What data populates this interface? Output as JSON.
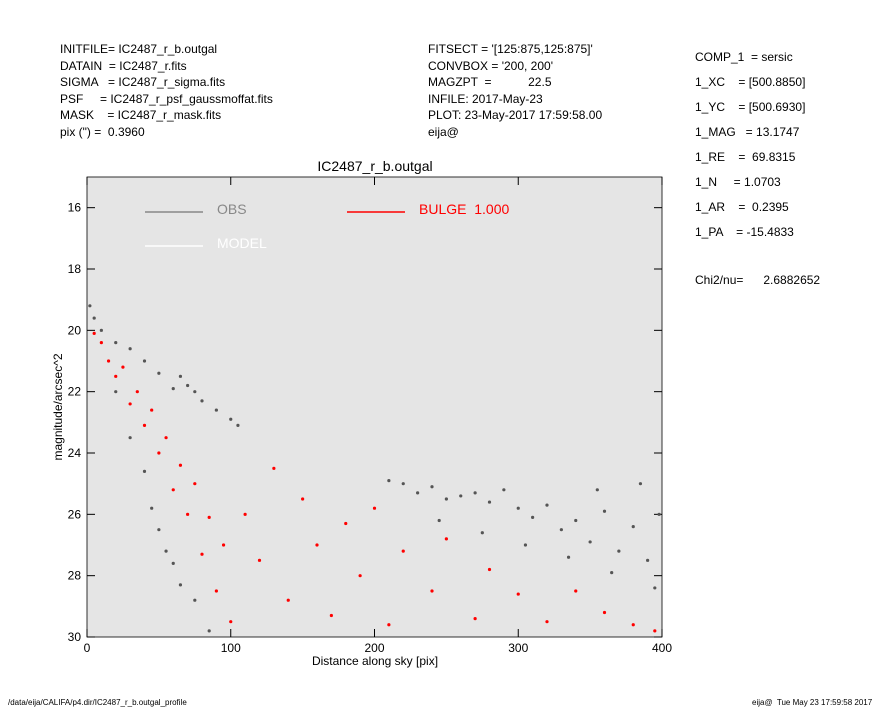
{
  "header": {
    "left": [
      "INITFILE= IC2487_r_b.outgal",
      "DATAIN  = IC2487_r.fits",
      "SIGMA   = IC2487_r_sigma.fits",
      "PSF     = IC2487_r_psf_gaussmoffat.fits",
      "MASK    = IC2487_r_mask.fits",
      "pix (\") =  0.3960"
    ],
    "middle": [
      "FITSECT = '[125:875,125:875]'",
      "CONVBOX = '200, 200'",
      "MAGZPT  =           22.5",
      "INFILE: 2017-May-23",
      "PLOT: 23-May-2017 17:59:58.00",
      "eija@"
    ],
    "right": [
      "COMP_1  = sersic",
      "1_XC    = [500.8850]",
      "1_YC    = [500.6930]",
      "1_MAG   = 13.1747",
      "1_RE    =  69.8315",
      "1_N     = 1.0703",
      "1_AR    =  0.2395",
      "1_PA    = -15.4833"
    ],
    "chi2": "Chi2/nu=      2.6882652",
    "footer_left": "/data/eija/CALIFA/p4.dir/IC2487_r_b.outgal_profile",
    "footer_right": "eija@  Tue May 23 17:59:58 2017"
  },
  "chart_data": {
    "type": "scatter",
    "title": "IC2487_r_b.outgal",
    "x_label": "Distance along sky [pix]",
    "y_label": "magnitude/arcsec^2",
    "xlim": [
      0,
      400
    ],
    "ylim": [
      30,
      15
    ],
    "xticks": [
      0,
      100,
      200,
      300,
      400
    ],
    "yticks": [
      16,
      18,
      20,
      22,
      24,
      26,
      28,
      30
    ],
    "series": [
      {
        "name": "OBS",
        "color": "#555555",
        "x": [
          2,
          5,
          10,
          20,
          30,
          40,
          50,
          60,
          65,
          70,
          75,
          80,
          90,
          100,
          105,
          20,
          30,
          40,
          45,
          50,
          55,
          60,
          65,
          75,
          85,
          210,
          220,
          230,
          240,
          250,
          260,
          270,
          280,
          290,
          300,
          310,
          320,
          330,
          340,
          350,
          360,
          370,
          380,
          390,
          398,
          245,
          275,
          305,
          335,
          365,
          395,
          355,
          385
        ],
        "values": [
          19.2,
          19.6,
          20,
          20.4,
          20.6,
          21,
          21.4,
          21.9,
          21.5,
          21.8,
          22,
          22.3,
          22.6,
          22.9,
          23.1,
          22,
          23.5,
          24.6,
          25.8,
          26.5,
          27.2,
          27.6,
          28.3,
          28.8,
          29.8,
          24.9,
          25,
          25.3,
          25.1,
          25.5,
          25.4,
          25.3,
          25.6,
          25.2,
          25.8,
          26.1,
          25.7,
          26.5,
          26.2,
          26.9,
          25.9,
          27.2,
          26.4,
          27.5,
          26,
          26.2,
          26.6,
          27,
          27.4,
          27.9,
          28.4,
          25.2,
          25
        ]
      },
      {
        "name": "MODEL",
        "color": "#ffffff",
        "x": [],
        "values": []
      },
      {
        "name": "BULGE  1.000",
        "color": "#ff0000",
        "x": [
          5,
          10,
          15,
          20,
          25,
          30,
          35,
          40,
          45,
          50,
          55,
          60,
          65,
          70,
          75,
          80,
          85,
          90,
          95,
          100,
          110,
          120,
          130,
          140,
          150,
          160,
          170,
          180,
          190,
          200,
          210,
          220,
          240,
          250,
          270,
          280,
          300,
          320,
          340,
          360,
          380,
          395
        ],
        "values": [
          20.1,
          20.4,
          21,
          21.5,
          21.2,
          22.4,
          22,
          23.1,
          22.6,
          24,
          23.5,
          25.2,
          24.4,
          26,
          25,
          27.3,
          26.1,
          28.5,
          27,
          29.5,
          26,
          27.5,
          24.5,
          28.8,
          25.5,
          27,
          29.3,
          26.3,
          28,
          25.8,
          29.6,
          27.2,
          28.5,
          26.8,
          29.4,
          27.8,
          28.6,
          29.5,
          28.5,
          29.2,
          29.6,
          29.8
        ]
      }
    ]
  }
}
